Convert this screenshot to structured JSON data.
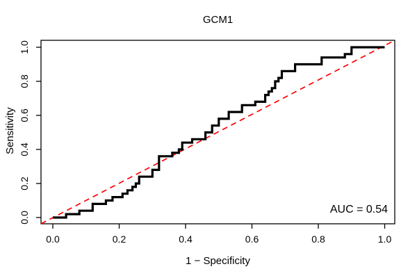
{
  "chart_data": {
    "type": "line",
    "title": "GCM1",
    "xlabel": "1 − Specificity",
    "ylabel": "Sensitivity",
    "annotation": "AUC = 0.54",
    "auc_value": 0.54,
    "xlim": [
      0.0,
      1.0
    ],
    "ylim": [
      0.0,
      1.0
    ],
    "x_ticks": [
      0.0,
      0.2,
      0.4,
      0.6,
      0.8,
      1.0
    ],
    "y_ticks": [
      0.0,
      0.2,
      0.4,
      0.6,
      0.8,
      1.0
    ],
    "x_tick_labels": [
      "0.0",
      "0.2",
      "0.4",
      "0.6",
      "0.8",
      "1.0"
    ],
    "y_tick_labels": [
      "0.0",
      "0.2",
      "0.4",
      "0.6",
      "0.8",
      "1.0"
    ],
    "grid": false,
    "legend_position": "none",
    "colors": {
      "roc_curve": "#000000",
      "chance_line": "#ff0000",
      "axis": "#000000"
    },
    "series": [
      {
        "name": "ROC step curve",
        "style": "step-solid",
        "color": "#000000",
        "points": [
          [
            0,
            0
          ],
          [
            0.04,
            0
          ],
          [
            0.04,
            0.02
          ],
          [
            0.08,
            0.02
          ],
          [
            0.08,
            0.04
          ],
          [
            0.12,
            0.04
          ],
          [
            0.12,
            0.08
          ],
          [
            0.16,
            0.08
          ],
          [
            0.16,
            0.1
          ],
          [
            0.18,
            0.1
          ],
          [
            0.18,
            0.12
          ],
          [
            0.21,
            0.12
          ],
          [
            0.21,
            0.14
          ],
          [
            0.225,
            0.14
          ],
          [
            0.225,
            0.16
          ],
          [
            0.24,
            0.16
          ],
          [
            0.24,
            0.18
          ],
          [
            0.25,
            0.18
          ],
          [
            0.25,
            0.2
          ],
          [
            0.26,
            0.2
          ],
          [
            0.26,
            0.24
          ],
          [
            0.3,
            0.24
          ],
          [
            0.3,
            0.28
          ],
          [
            0.32,
            0.28
          ],
          [
            0.32,
            0.36
          ],
          [
            0.36,
            0.36
          ],
          [
            0.36,
            0.38
          ],
          [
            0.38,
            0.38
          ],
          [
            0.38,
            0.4
          ],
          [
            0.39,
            0.4
          ],
          [
            0.39,
            0.44
          ],
          [
            0.42,
            0.44
          ],
          [
            0.42,
            0.46
          ],
          [
            0.46,
            0.46
          ],
          [
            0.46,
            0.5
          ],
          [
            0.48,
            0.5
          ],
          [
            0.48,
            0.54
          ],
          [
            0.5,
            0.54
          ],
          [
            0.5,
            0.58
          ],
          [
            0.53,
            0.58
          ],
          [
            0.53,
            0.62
          ],
          [
            0.57,
            0.62
          ],
          [
            0.57,
            0.66
          ],
          [
            0.61,
            0.66
          ],
          [
            0.61,
            0.68
          ],
          [
            0.64,
            0.68
          ],
          [
            0.64,
            0.72
          ],
          [
            0.65,
            0.72
          ],
          [
            0.65,
            0.74
          ],
          [
            0.66,
            0.74
          ],
          [
            0.66,
            0.76
          ],
          [
            0.67,
            0.76
          ],
          [
            0.67,
            0.8
          ],
          [
            0.68,
            0.8
          ],
          [
            0.68,
            0.82
          ],
          [
            0.69,
            0.82
          ],
          [
            0.69,
            0.86
          ],
          [
            0.73,
            0.86
          ],
          [
            0.73,
            0.9
          ],
          [
            0.81,
            0.9
          ],
          [
            0.81,
            0.94
          ],
          [
            0.88,
            0.94
          ],
          [
            0.88,
            0.96
          ],
          [
            0.9,
            0.96
          ],
          [
            0.9,
            1.0
          ],
          [
            1.0,
            1.0
          ]
        ]
      },
      {
        "name": "chance diagonal",
        "style": "dashed",
        "color": "#ff0000",
        "points": [
          [
            0,
            0
          ],
          [
            1,
            1
          ]
        ]
      }
    ]
  }
}
